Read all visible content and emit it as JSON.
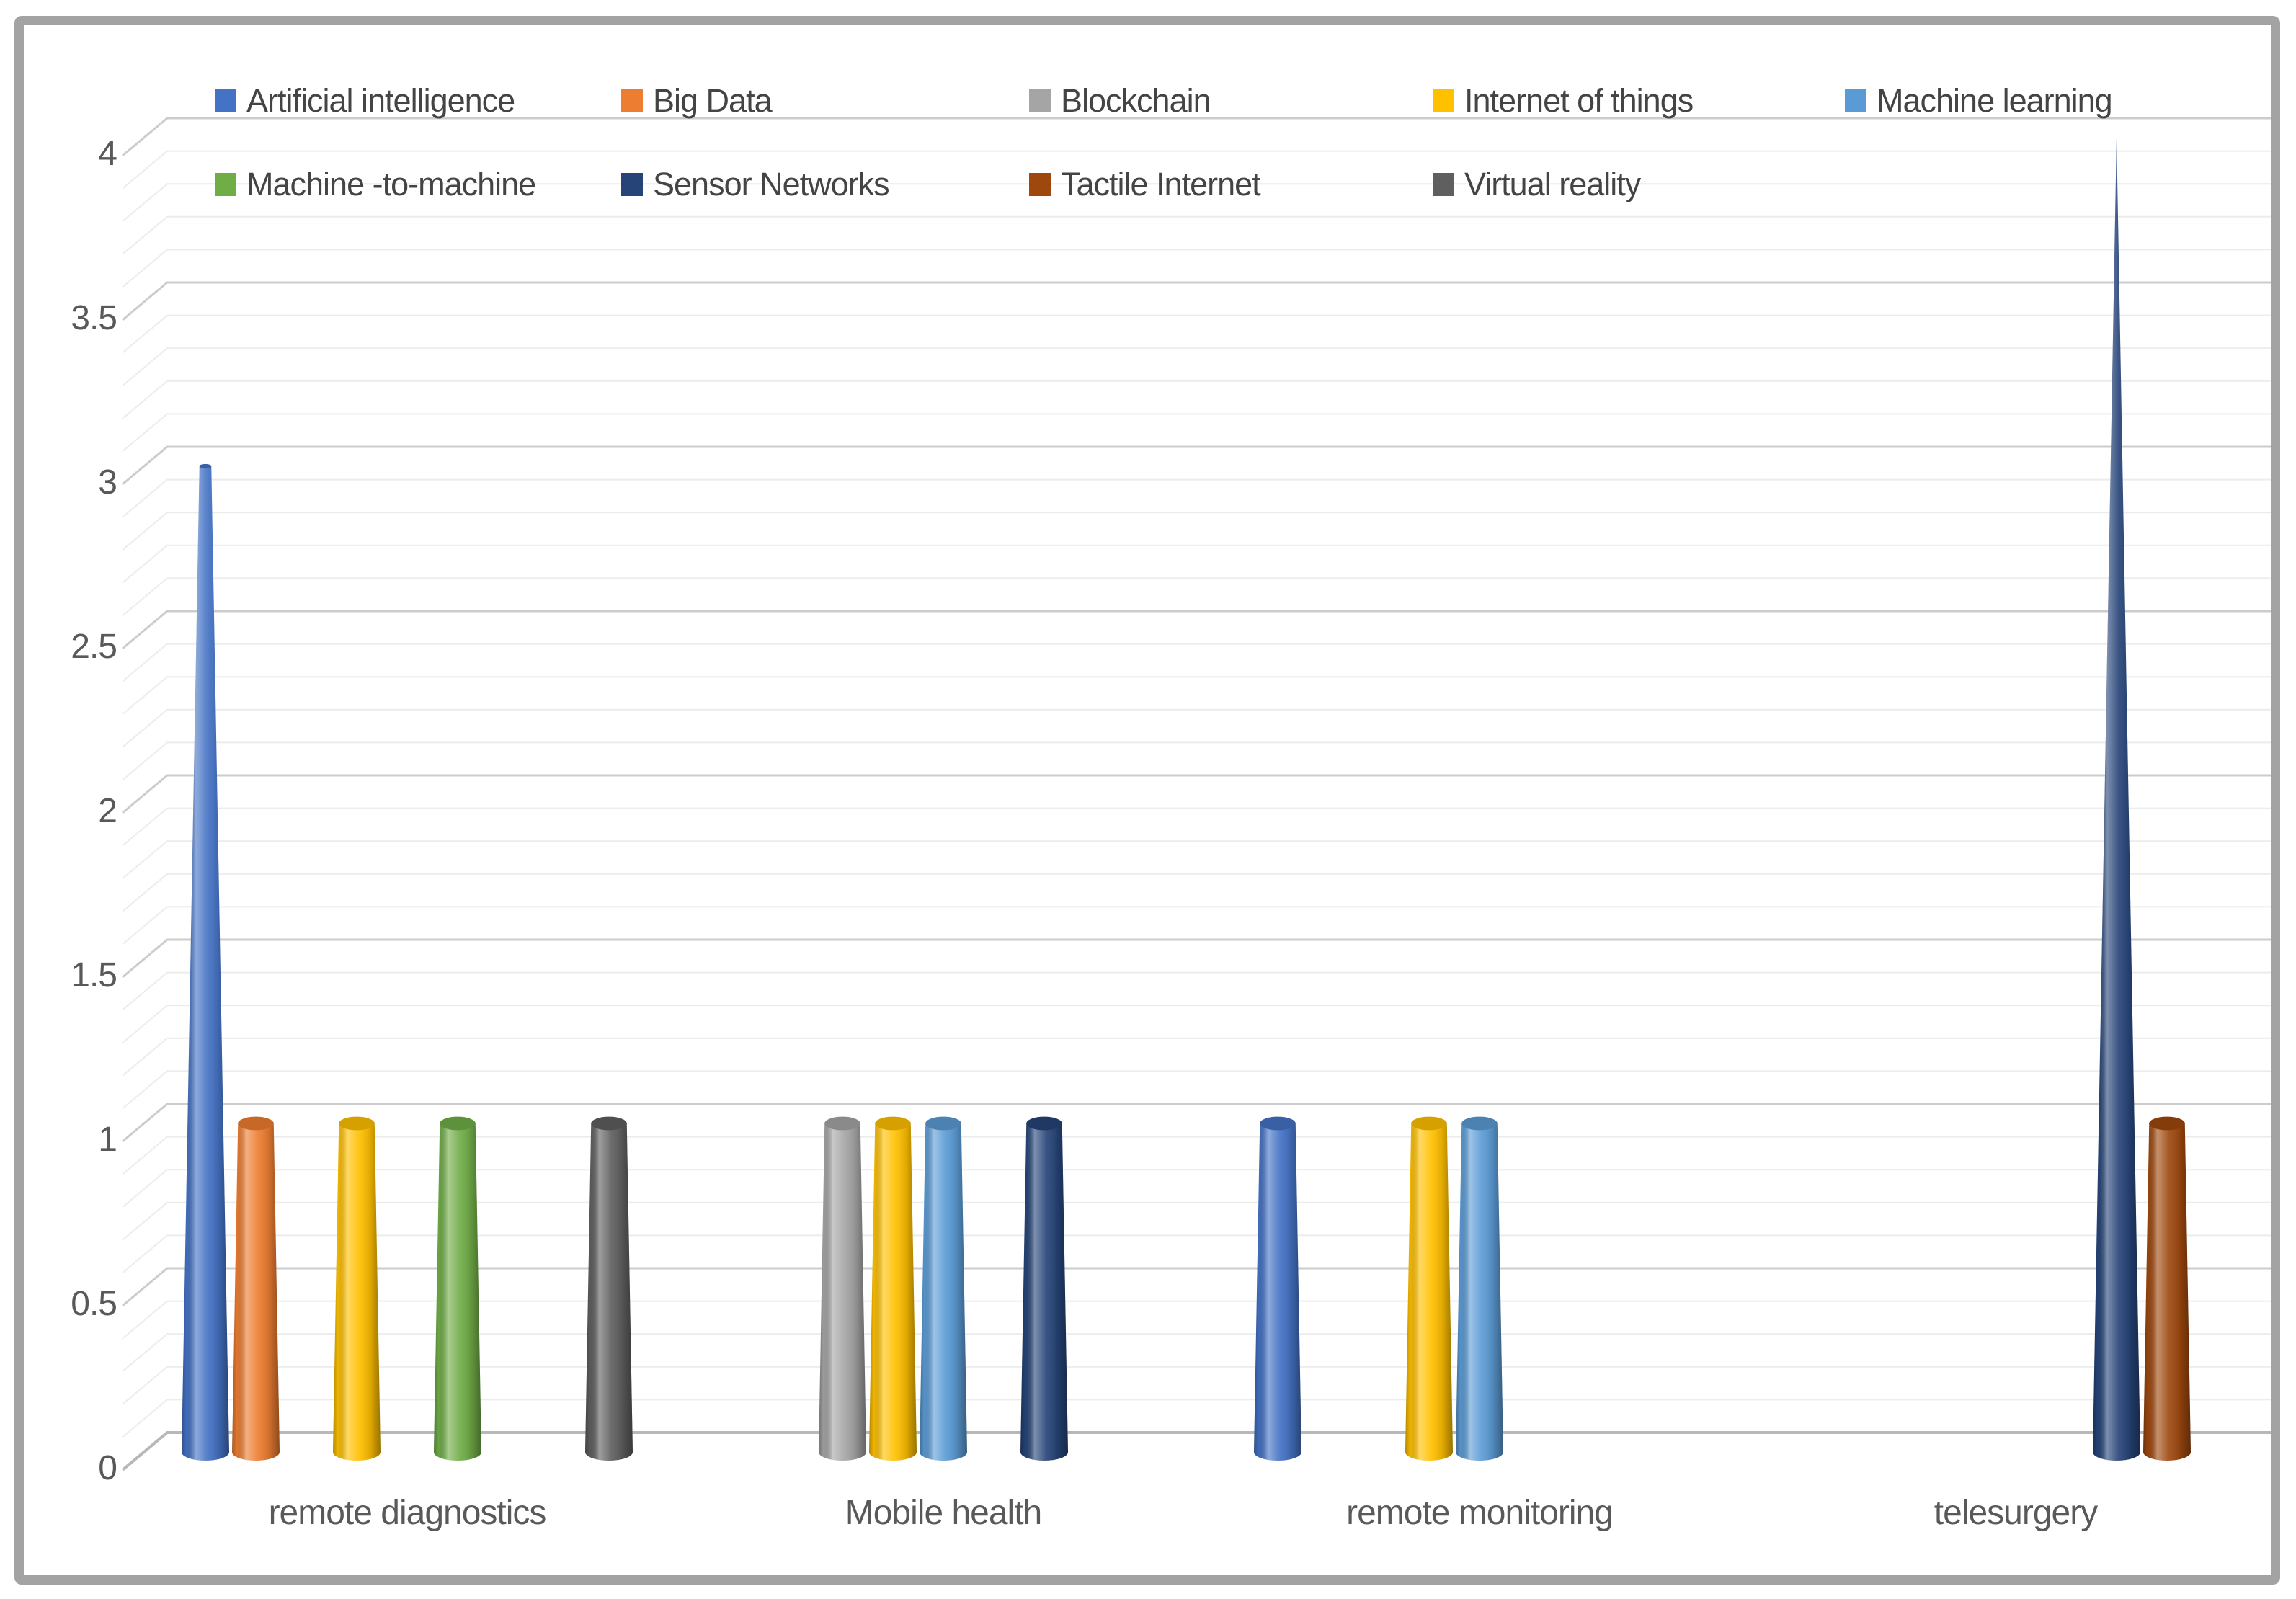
{
  "chart_data": {
    "type": "bar",
    "variant": "3d-cone-column",
    "title": "",
    "xlabel": "",
    "ylabel": "",
    "categories": [
      "remote diagnostics",
      "Mobile health",
      "remote monitoring",
      "telesurgery"
    ],
    "series": [
      {
        "name": "Artificial intelligence",
        "color": "#4472C4",
        "values": [
          3,
          0,
          1,
          0
        ]
      },
      {
        "name": "Big Data",
        "color": "#ED7D31",
        "values": [
          1,
          0,
          0,
          0
        ]
      },
      {
        "name": "Blockchain",
        "color": "#A5A5A5",
        "values": [
          0,
          1,
          0,
          0
        ]
      },
      {
        "name": "Internet of things",
        "color": "#FFC000",
        "values": [
          1,
          1,
          1,
          0
        ]
      },
      {
        "name": "Machine learning",
        "color": "#5B9BD5",
        "values": [
          0,
          1,
          1,
          0
        ]
      },
      {
        "name": "Machine -to-machine",
        "color": "#70AD47",
        "values": [
          1,
          0,
          0,
          0
        ]
      },
      {
        "name": "Sensor Networks",
        "color": "#264478",
        "values": [
          0,
          1,
          0,
          4
        ]
      },
      {
        "name": "Tactile Internet",
        "color": "#9E480E",
        "values": [
          0,
          0,
          0,
          1
        ]
      },
      {
        "name": "Virtual reality",
        "color": "#5F5F5F",
        "values": [
          1,
          0,
          0,
          0
        ]
      }
    ],
    "ylim": [
      0,
      4
    ],
    "y_major_step": 0.5,
    "y_minor_step": 0.1,
    "y_tick_labels": [
      "4",
      "3.5",
      "3",
      "2.5",
      "2",
      "1.5",
      "1",
      "0.5",
      "0"
    ],
    "grid": true,
    "legend_position": "top",
    "legend_rows": [
      [
        0,
        1,
        2,
        3,
        4
      ],
      [
        5,
        6,
        7,
        8
      ]
    ]
  },
  "style_colors": {
    "frame_border": "#a3a3a3",
    "background": "#ffffff",
    "major_grid": "#cccccc",
    "minor_grid": "#ececec",
    "baseline_grid": "#b8b8b8",
    "axis_text": "#595959",
    "legend_text": "#444444"
  }
}
